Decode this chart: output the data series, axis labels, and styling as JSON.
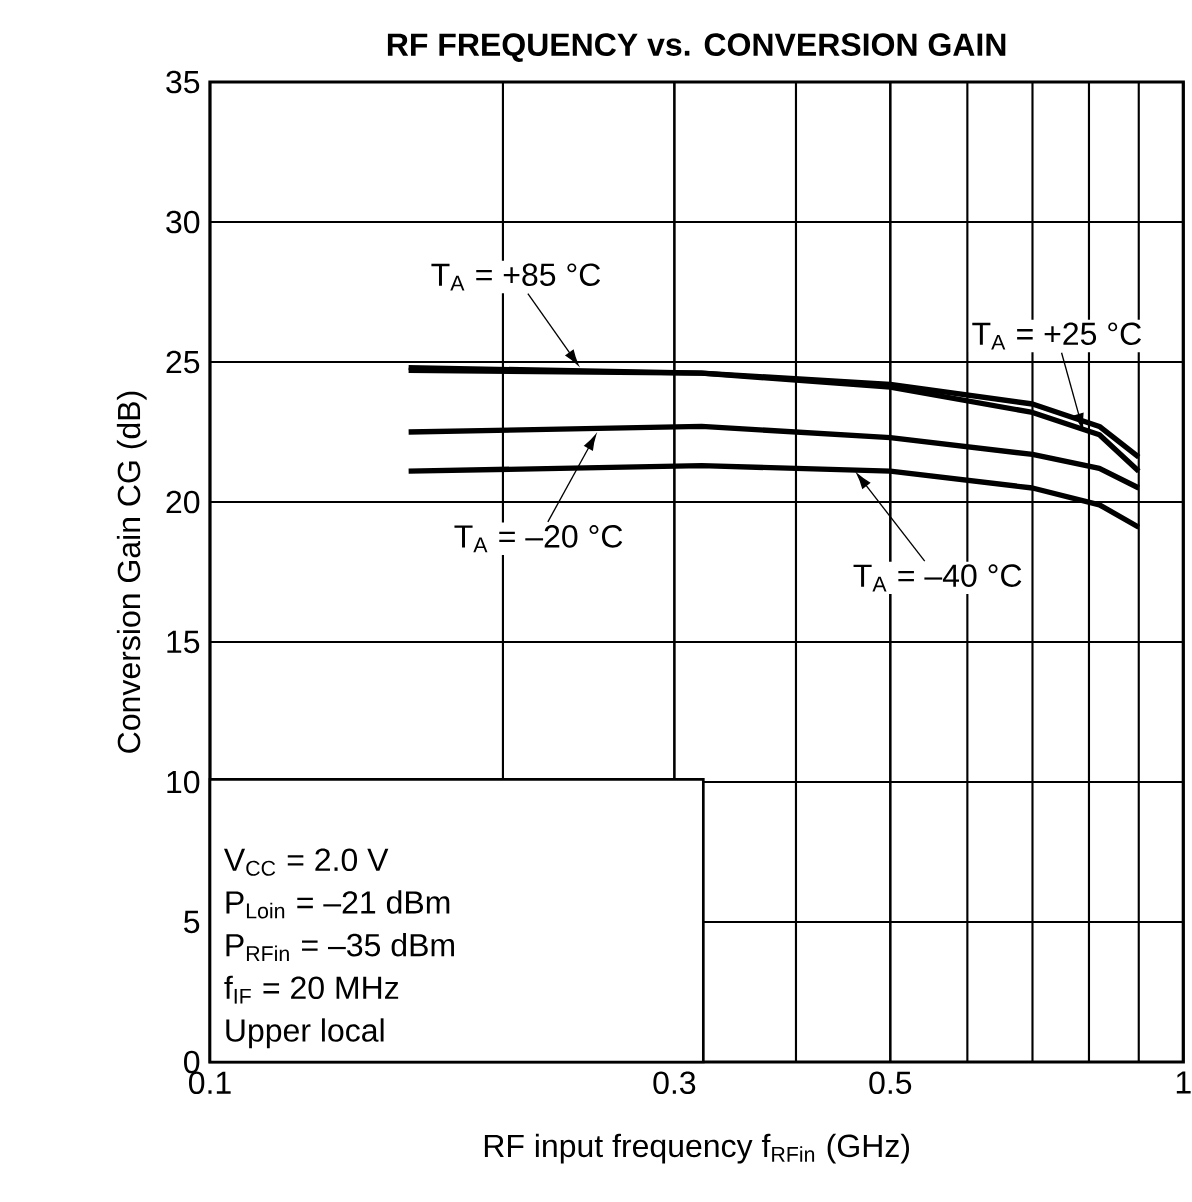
{
  "chart_data": {
    "type": "line",
    "title": "**RF FREQUENCY vs. CONVERSION GAIN**",
    "xlabel": "RF input frequency  f$_{RFin}$ (GHz)",
    "ylabel": "Conversion Gain  CG (dB)",
    "log": "x",
    "xlim": [
      0.1,
      1
    ],
    "xticks": [
      0.1,
      0.3,
      0.5,
      1
    ],
    "ylim": [
      0,
      35
    ],
    "yticks": [
      0,
      5,
      10,
      15,
      20,
      25,
      30,
      35
    ],
    "grid": true,
    "marker": "none",
    "line_style": "solid",
    "series": [
      {
        "color": "#000000",
        "x": [
          0.16,
          0.32,
          0.5,
          0.7,
          0.82,
          0.9
        ],
        "values": [
          24.8,
          24.6,
          24.2,
          23.5,
          22.7,
          21.6
        ]
      },
      {
        "color": "#000000",
        "x": [
          0.16,
          0.32,
          0.5,
          0.7,
          0.82,
          0.9
        ],
        "values": [
          24.7,
          24.6,
          24.1,
          23.2,
          22.4,
          21.1
        ]
      },
      {
        "color": "#000000",
        "x": [
          0.16,
          0.32,
          0.5,
          0.7,
          0.82,
          0.9
        ],
        "values": [
          22.5,
          22.7,
          22.3,
          21.7,
          21.2,
          20.5
        ]
      },
      {
        "color": "#000000",
        "x": [
          0.16,
          0.32,
          0.5,
          0.7,
          0.82,
          0.9
        ],
        "values": [
          21.1,
          21.3,
          21.1,
          20.5,
          19.9,
          19.1
        ]
      }
    ],
    "annotations": [
      {
        "text": "T$_{A}$ = +85 °C",
        "x": 0.24,
        "y": 24.8
      },
      {
        "text": "T$_{A}$ = +25 °C",
        "x": 0.79,
        "y": 22.5
      },
      {
        "text": "T$_{A}$ = –20 °C",
        "x": 0.25,
        "y": 22.5
      },
      {
        "text": "T$_{A}$ = –40 °C",
        "x": 0.46,
        "y": 21.1
      },
      "V$_{CC}$ = 2.0 V",
      "P$_{Loin}$ = –21 dBm",
      "P$_{RFin}$ = –35 dBm",
      "f$_{IF}$ = 20 MHz",
      "Upper local"
    ]
  }
}
